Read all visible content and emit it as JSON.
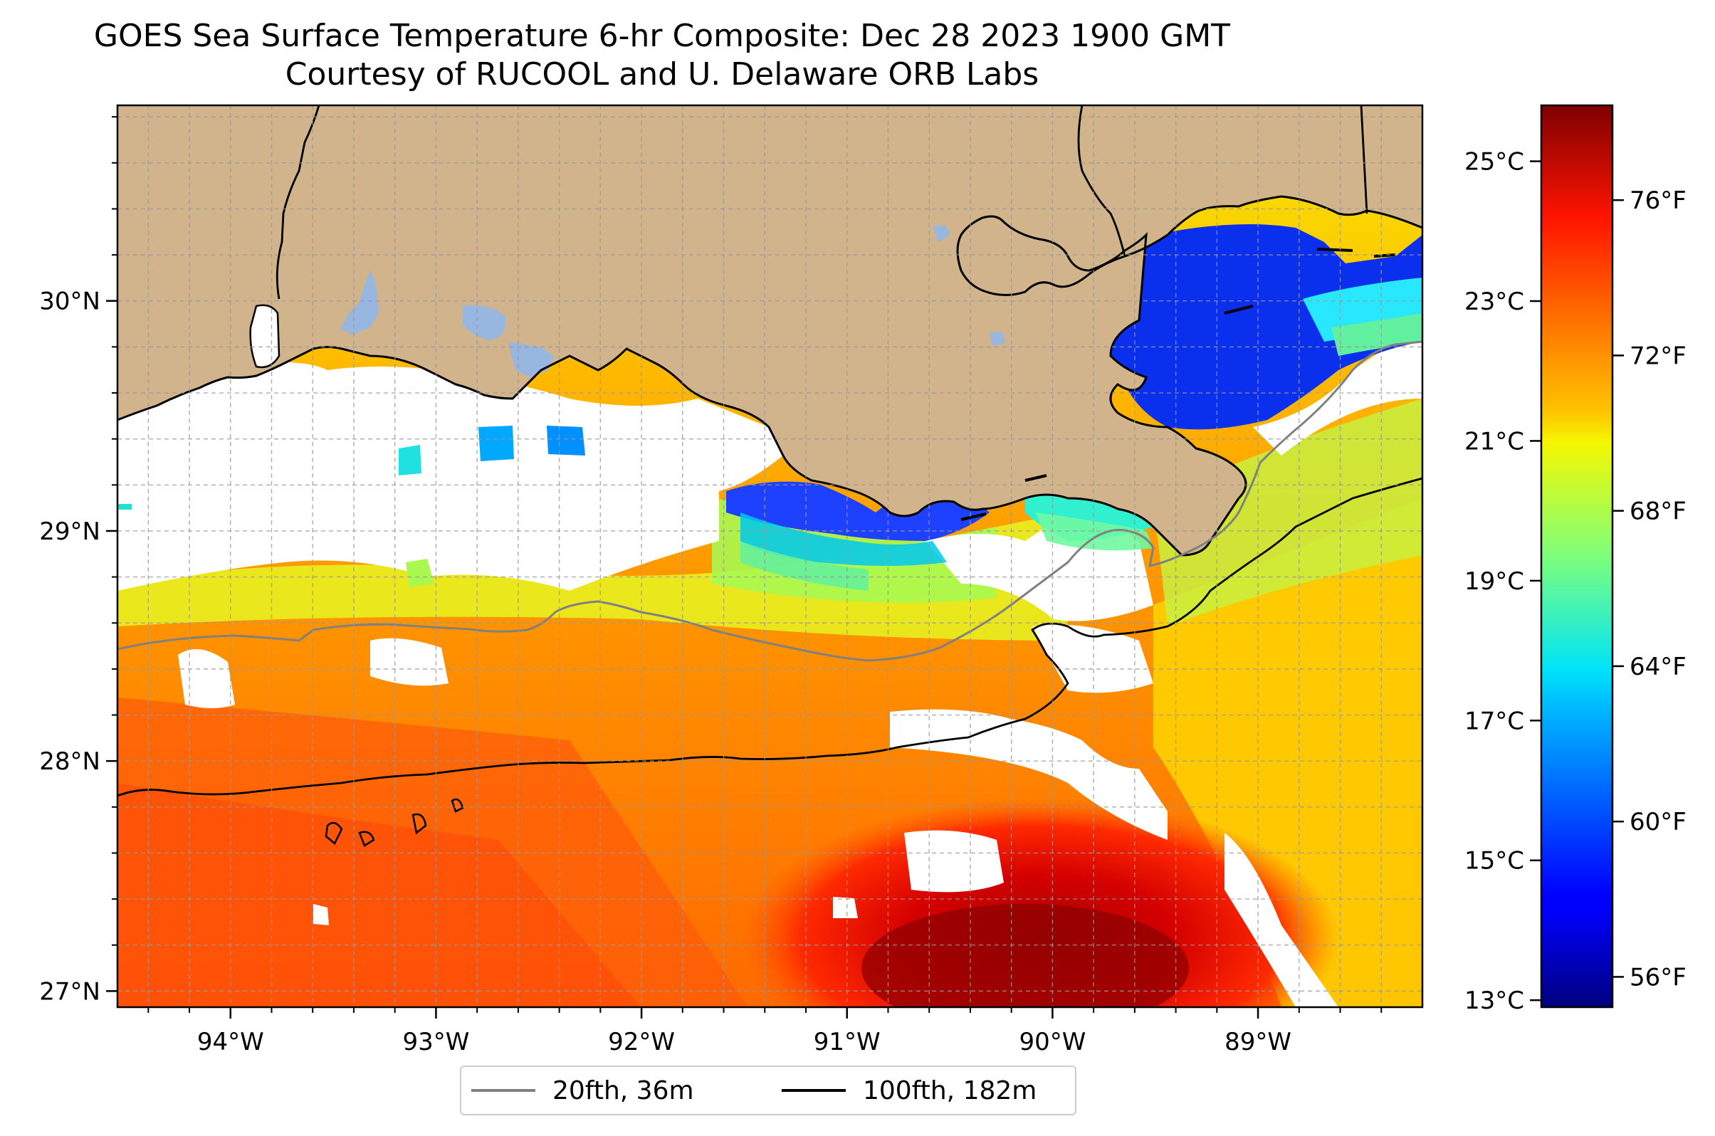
{
  "title": {
    "line1": "GOES Sea Surface Temperature 6-hr Composite: Dec 28 2023 1900 GMT",
    "line2": "Courtesy of RUCOOL and U. Delaware ORB Labs"
  },
  "map": {
    "lon_range": [
      -94.55,
      -88.2
    ],
    "lat_range": [
      26.93,
      30.85
    ],
    "lon_ticks": [
      {
        "value": -94,
        "label": "94°W"
      },
      {
        "value": -93,
        "label": "93°W"
      },
      {
        "value": -92,
        "label": "92°W"
      },
      {
        "value": -91,
        "label": "91°W"
      },
      {
        "value": -90,
        "label": "90°W"
      },
      {
        "value": -89,
        "label": "89°W"
      }
    ],
    "lat_ticks": [
      {
        "value": 30,
        "label": "30°N"
      },
      {
        "value": 29,
        "label": "29°N"
      },
      {
        "value": 28,
        "label": "28°N"
      },
      {
        "value": 27,
        "label": "27°N"
      }
    ],
    "grid": "on",
    "colors": {
      "land": "#d2b48c",
      "no_data": "#ffffff",
      "inland_water": "#97b6e0",
      "isobath_20fth": "#808080",
      "isobath_100fth": "#000000"
    }
  },
  "colorbar": {
    "colormap": "jet",
    "range_c": [
      12.9,
      25.8
    ],
    "celsius_ticks": [
      {
        "value": 25,
        "label": "25°C"
      },
      {
        "value": 23,
        "label": "23°C"
      },
      {
        "value": 21,
        "label": "21°C"
      },
      {
        "value": 19,
        "label": "19°C"
      },
      {
        "value": 17,
        "label": "17°C"
      },
      {
        "value": 15,
        "label": "15°C"
      },
      {
        "value": 13,
        "label": "13°C"
      }
    ],
    "fahrenheit_ticks": [
      {
        "value": 76,
        "label": "76°F"
      },
      {
        "value": 72,
        "label": "72°F"
      },
      {
        "value": 68,
        "label": "68°F"
      },
      {
        "value": 64,
        "label": "64°F"
      },
      {
        "value": 60,
        "label": "60°F"
      },
      {
        "value": 56,
        "label": "56°F"
      }
    ]
  },
  "legend": {
    "items": [
      {
        "label": "20fth, 36m",
        "color": "#808080"
      },
      {
        "label": "100fth, 182m",
        "color": "#000000"
      }
    ]
  }
}
